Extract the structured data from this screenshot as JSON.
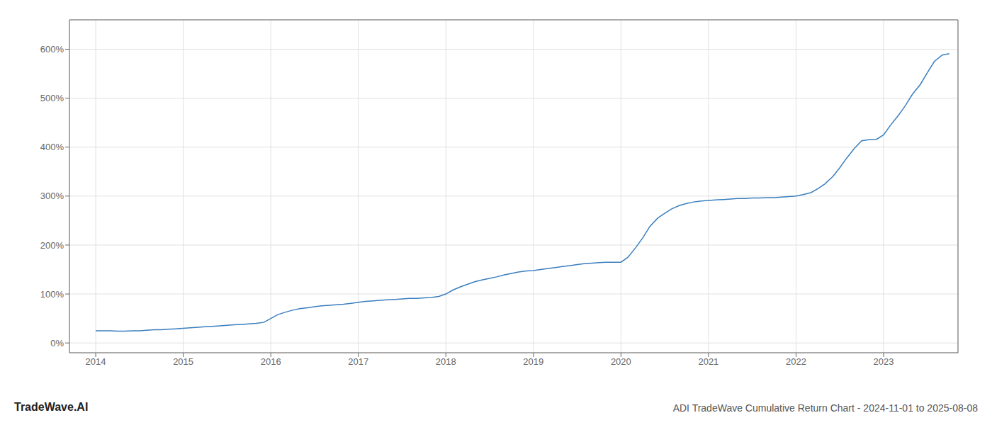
{
  "chart_data": {
    "type": "line",
    "title": "ADI TradeWave Cumulative Return Chart - 2024-11-01 to 2025-08-08",
    "annotations": [
      "TradeWave.AI"
    ],
    "x": [
      2014.0,
      2014.08,
      2014.17,
      2014.25,
      2014.33,
      2014.42,
      2014.5,
      2014.58,
      2014.67,
      2014.75,
      2014.83,
      2014.92,
      2015.0,
      2015.08,
      2015.17,
      2015.25,
      2015.33,
      2015.42,
      2015.5,
      2015.58,
      2015.67,
      2015.75,
      2015.83,
      2015.92,
      2016.0,
      2016.08,
      2016.17,
      2016.25,
      2016.33,
      2016.42,
      2016.5,
      2016.58,
      2016.67,
      2016.75,
      2016.83,
      2016.92,
      2017.0,
      2017.08,
      2017.17,
      2017.25,
      2017.33,
      2017.42,
      2017.5,
      2017.58,
      2017.67,
      2017.75,
      2017.83,
      2017.92,
      2018.0,
      2018.08,
      2018.17,
      2018.25,
      2018.33,
      2018.42,
      2018.5,
      2018.58,
      2018.67,
      2018.75,
      2018.83,
      2018.92,
      2019.0,
      2019.08,
      2019.17,
      2019.25,
      2019.33,
      2019.42,
      2019.5,
      2019.58,
      2019.67,
      2019.75,
      2019.83,
      2019.92,
      2020.0,
      2020.08,
      2020.17,
      2020.25,
      2020.33,
      2020.42,
      2020.5,
      2020.58,
      2020.67,
      2020.75,
      2020.83,
      2020.92,
      2021.0,
      2021.08,
      2021.17,
      2021.25,
      2021.33,
      2021.42,
      2021.5,
      2021.58,
      2021.67,
      2021.75,
      2021.83,
      2021.92,
      2022.0,
      2022.08,
      2022.17,
      2022.25,
      2022.33,
      2022.42,
      2022.5,
      2022.58,
      2022.67,
      2022.75,
      2022.83,
      2022.92,
      2023.0,
      2023.08,
      2023.17,
      2023.25,
      2023.33,
      2023.42,
      2023.5,
      2023.58,
      2023.67,
      2023.75
    ],
    "values": [
      25,
      25,
      25,
      24,
      24,
      25,
      25,
      26,
      27,
      27,
      28,
      29,
      30,
      31,
      32,
      33,
      34,
      35,
      36,
      37,
      38,
      39,
      40,
      42,
      50,
      58,
      63,
      67,
      70,
      72,
      74,
      76,
      77,
      78,
      79,
      81,
      83,
      85,
      86,
      87,
      88,
      89,
      90,
      91,
      91,
      92,
      93,
      95,
      100,
      108,
      115,
      120,
      125,
      129,
      132,
      135,
      139,
      142,
      145,
      147,
      148,
      150,
      152,
      154,
      156,
      158,
      160,
      162,
      163,
      164,
      165,
      165,
      165,
      175,
      195,
      215,
      238,
      255,
      265,
      274,
      281,
      285,
      288,
      290,
      291,
      292,
      293,
      294,
      295,
      295,
      296,
      296,
      297,
      297,
      298,
      299,
      300,
      303,
      307,
      315,
      325,
      340,
      358,
      378,
      398,
      413,
      415,
      416,
      425,
      445,
      465,
      485,
      508,
      528,
      552,
      575,
      588,
      591
    ],
    "color": "#3a7ebf",
    "xlim": [
      2013.7,
      2023.85
    ],
    "ylim": [
      -20,
      660
    ],
    "xticks": [
      2014,
      2015,
      2016,
      2017,
      2018,
      2019,
      2020,
      2021,
      2022,
      2023
    ],
    "yticks": [
      {
        "value": 0,
        "label": "0%"
      },
      {
        "value": 100,
        "label": "100%"
      },
      {
        "value": 200,
        "label": "200%"
      },
      {
        "value": 300,
        "label": "300%"
      },
      {
        "value": 400,
        "label": "400%"
      },
      {
        "value": 500,
        "label": "500%"
      },
      {
        "value": 600,
        "label": "600%"
      }
    ],
    "grid": true
  }
}
